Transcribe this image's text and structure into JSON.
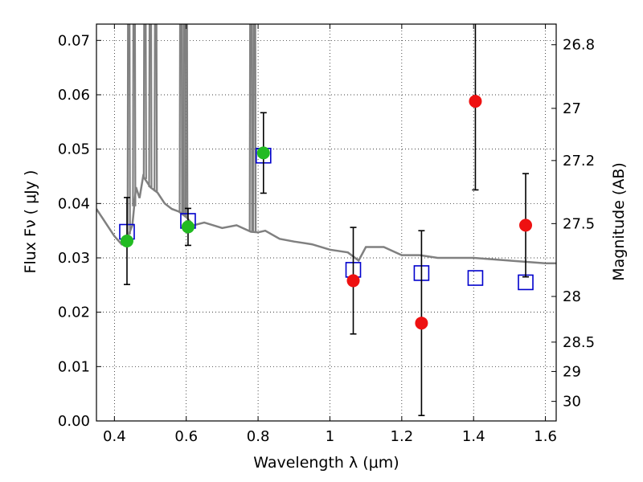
{
  "chart_data": {
    "type": "scatter",
    "xlabel": "Wavelength  λ (μm)",
    "ylabel": "Flux  Fν  ( μJy )",
    "y2label": "Magnitude (AB)",
    "xlim": [
      0.35,
      1.63
    ],
    "ylim": [
      0.0,
      0.073
    ],
    "grid": true,
    "x_ticks": [
      0.4,
      0.6,
      0.8,
      1.0,
      1.2,
      1.4,
      1.6
    ],
    "x_tick_labels": [
      "0.4",
      "0.6",
      "0.8",
      "1",
      "1.2",
      "1.4",
      "1.6"
    ],
    "y_ticks": [
      0.0,
      0.01,
      0.02,
      0.03,
      0.04,
      0.05,
      0.06,
      0.07
    ],
    "y_tick_labels": [
      "0.00",
      "0.01",
      "0.02",
      "0.03",
      "0.04",
      "0.05",
      "0.06",
      "0.07"
    ],
    "y2_tick_labels": [
      "26.8",
      "27",
      "27.2",
      "27.5",
      "28",
      "28.5",
      "29",
      "30"
    ],
    "y2_tick_flux": [
      0.0692,
      0.0575,
      0.0479,
      0.0363,
      0.0229,
      0.0145,
      0.0091,
      0.0036
    ],
    "model_spectrum": {
      "color": "#808080",
      "x": [
        0.35,
        0.38,
        0.4,
        0.42,
        0.435,
        0.45,
        0.46,
        0.47,
        0.48,
        0.49,
        0.5,
        0.52,
        0.54,
        0.56,
        0.58,
        0.6,
        0.62,
        0.65,
        0.7,
        0.74,
        0.78,
        0.8,
        0.82,
        0.86,
        0.9,
        0.95,
        1.0,
        1.05,
        1.08,
        1.1,
        1.15,
        1.2,
        1.25,
        1.3,
        1.4,
        1.5,
        1.6,
        1.63
      ],
      "y": [
        0.039,
        0.036,
        0.034,
        0.0325,
        0.0335,
        0.036,
        0.043,
        0.041,
        0.045,
        0.044,
        0.043,
        0.042,
        0.04,
        0.039,
        0.0385,
        0.0375,
        0.036,
        0.0365,
        0.0355,
        0.036,
        0.0348,
        0.0347,
        0.035,
        0.0335,
        0.033,
        0.0325,
        0.0315,
        0.031,
        0.0295,
        0.032,
        0.032,
        0.0305,
        0.0305,
        0.03,
        0.03,
        0.0295,
        0.029,
        0.029
      ],
      "emission_lines": [
        0.44,
        0.455,
        0.485,
        0.5,
        0.515,
        0.585,
        0.595,
        0.6,
        0.78,
        0.79
      ]
    },
    "series": [
      {
        "name": "",
        "marker": "square",
        "color": "#0000cc",
        "x": [
          0.435,
          0.605,
          0.815,
          1.065,
          1.255,
          1.405,
          1.545
        ],
        "y": [
          0.0348,
          0.0368,
          0.0488,
          0.0278,
          0.0272,
          0.0263,
          0.0255
        ]
      },
      {
        "name": "",
        "marker": "circle",
        "color": "#22bb22",
        "x": [
          0.435,
          0.605,
          0.815
        ],
        "y": [
          0.0331,
          0.0357,
          0.0493
        ],
        "yerr": [
          0.008,
          0.0034,
          0.0074
        ]
      },
      {
        "name": "",
        "marker": "circle",
        "color": "#ee1111",
        "x": [
          1.065,
          1.255,
          1.405,
          1.545
        ],
        "y": [
          0.0258,
          0.018,
          0.0588,
          0.036
        ],
        "yerr": [
          0.0098,
          0.017,
          0.0163,
          0.0095
        ]
      }
    ]
  }
}
